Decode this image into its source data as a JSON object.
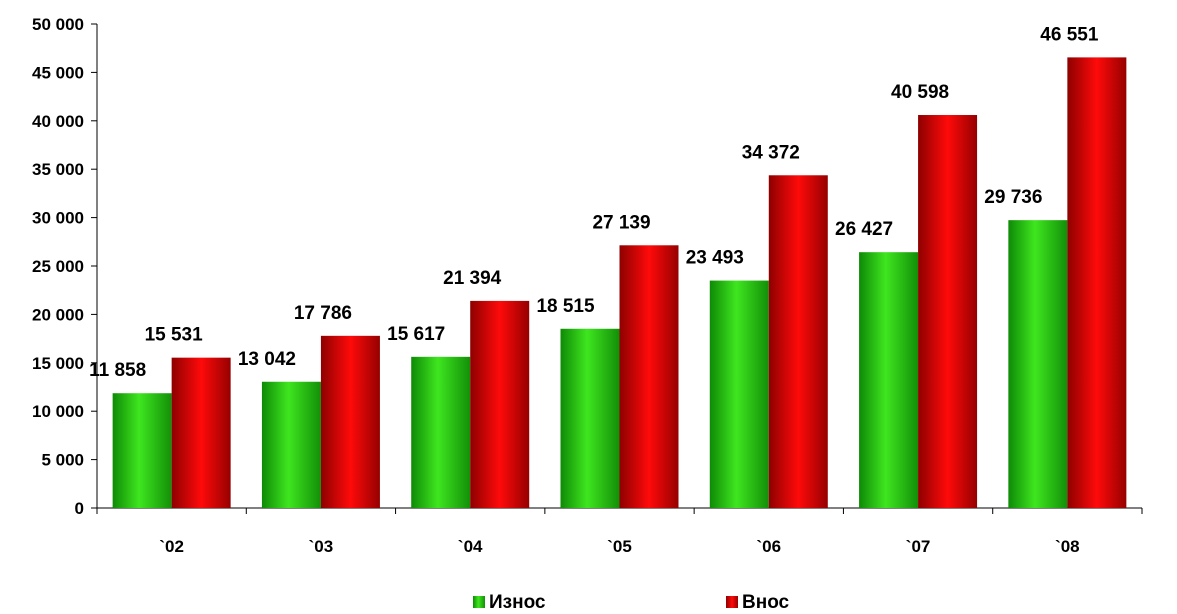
{
  "chart_data": {
    "type": "bar",
    "categories": [
      "`02",
      "`03",
      "`04",
      "`05",
      "`06",
      "`07",
      "`08"
    ],
    "series": [
      {
        "name": "Износ",
        "values": [
          11858,
          13042,
          15617,
          18515,
          23493,
          26427,
          29736
        ],
        "color": "#22cc11"
      },
      {
        "name": "Внос",
        "values": [
          15531,
          17786,
          21394,
          27139,
          34372,
          40598,
          46551
        ],
        "color": "#e00000"
      }
    ],
    "data_labels": [
      [
        "11 858",
        "13 042",
        "15 617",
        "18 515",
        "23 493",
        "26 427",
        "29 736"
      ],
      [
        "15 531",
        "17 786",
        "21 394",
        "27 139",
        "34 372",
        "40 598",
        "46 551"
      ]
    ],
    "y_ticks": [
      0,
      5000,
      10000,
      15000,
      20000,
      25000,
      30000,
      35000,
      40000,
      45000,
      50000
    ],
    "y_tick_labels": [
      "0",
      "5 000",
      "10 000",
      "15 000",
      "20 000",
      "25 000",
      "30 000",
      "35 000",
      "40 000",
      "45 000",
      "50 000"
    ],
    "ylim": [
      0,
      50000
    ],
    "grid": false,
    "legend_position": "bottom"
  }
}
